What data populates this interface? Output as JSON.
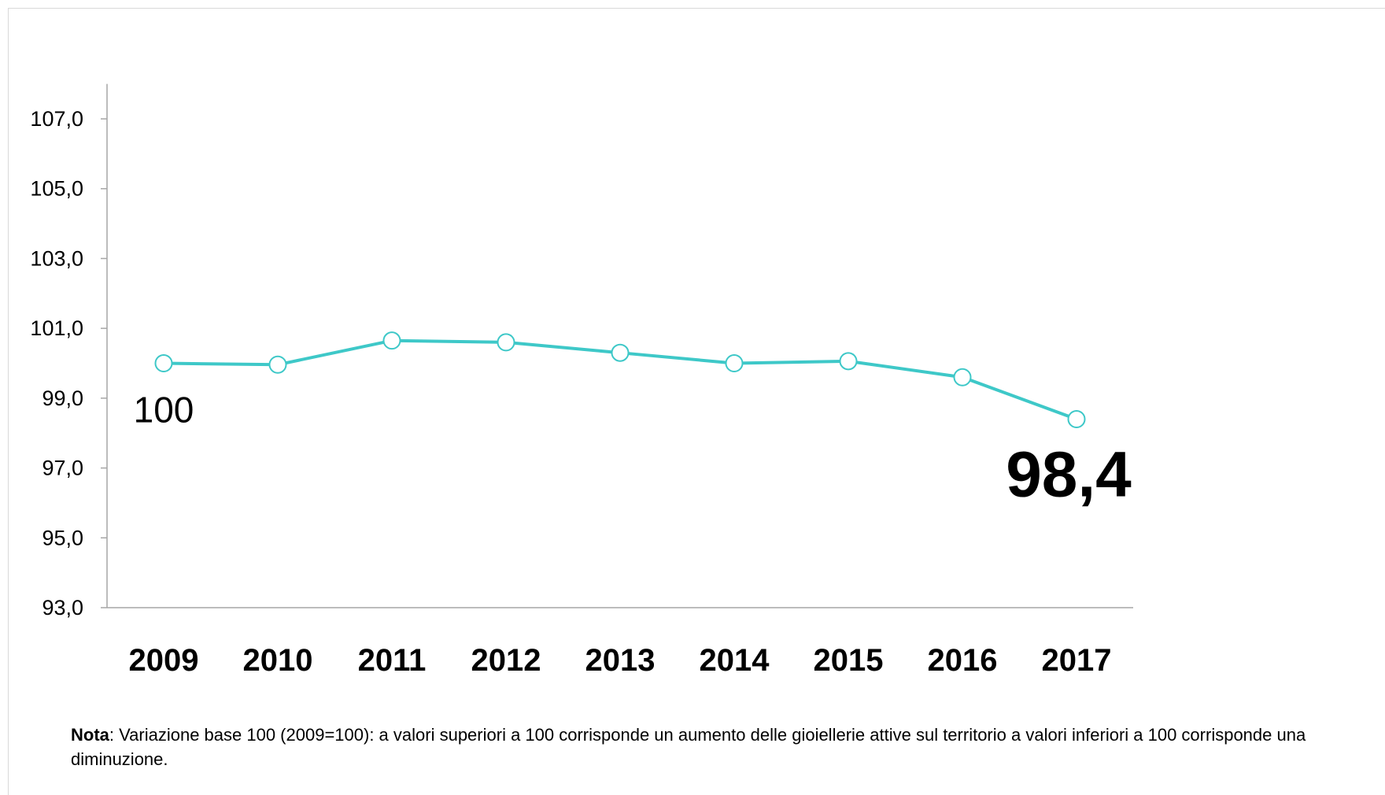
{
  "chart_data": {
    "type": "line",
    "categories": [
      "2009",
      "2010",
      "2011",
      "2012",
      "2013",
      "2014",
      "2015",
      "2016",
      "2017"
    ],
    "series": [
      {
        "values": [
          100.0,
          99.96,
          100.65,
          100.6,
          100.3,
          100.0,
          100.06,
          99.6,
          98.4
        ],
        "color": "#3ec8c8"
      }
    ],
    "ylim": [
      93.0,
      108.0
    ],
    "yticks": [
      93.0,
      95.0,
      97.0,
      99.0,
      101.0,
      103.0,
      105.0,
      107.0
    ],
    "ytick_labels": [
      "93,0",
      "95,0",
      "97,0",
      "99,0",
      "101,0",
      "103,0",
      "105,0",
      "107,0"
    ],
    "grid": false,
    "marker": "open-circle",
    "annotations": {
      "start_label": "100",
      "end_label": "98,4"
    }
  },
  "note": {
    "label": "Nota",
    "text": ": Variazione base 100 (2009=100): a valori superiori a 100 corrisponde un aumento delle gioiellerie attive sul territorio a valori inferiori a 100 corrisponde una diminuzione."
  }
}
